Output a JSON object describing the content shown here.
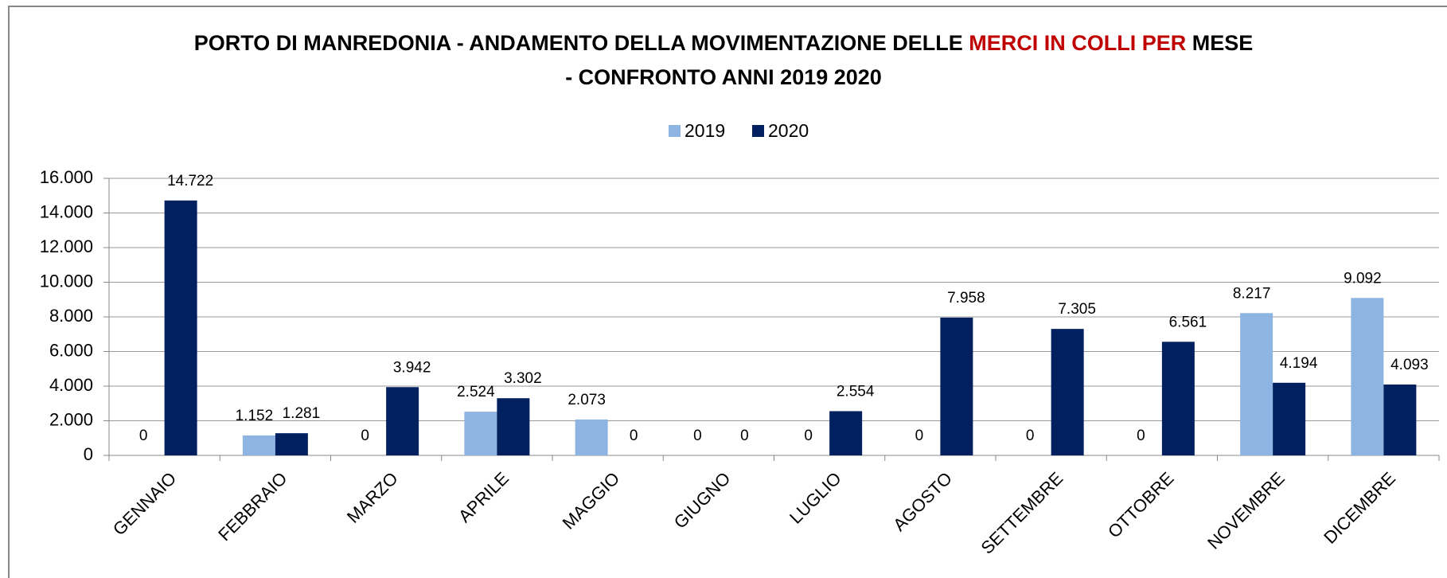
{
  "chart_data": {
    "type": "bar",
    "title_lines": [
      [
        {
          "text": "PORTO DI MANREDONIA - ANDAMENTO DELLA MOVIMENTAZIONE DELLE ",
          "color": "#000000"
        },
        {
          "text": "MERCI IN COLLI PER",
          "color": "#c00000"
        },
        {
          "text": " MESE",
          "color": "#000000"
        }
      ],
      [
        {
          "text": "- CONFRONTO ANNI 2019 2020",
          "color": "#000000"
        }
      ]
    ],
    "categories": [
      "GENNAIO",
      "FEBBRAIO",
      "MARZO",
      "APRILE",
      "MAGGIO",
      "GIUGNO",
      "LUGLIO",
      "AGOSTO",
      "SETTEMBRE",
      "OTTOBRE",
      "NOVEMBRE",
      "DICEMBRE"
    ],
    "series": [
      {
        "name": "2019",
        "color": "#8db4e2",
        "values": [
          0,
          1152,
          0,
          2524,
          2073,
          0,
          0,
          0,
          0,
          0,
          8217,
          9092
        ],
        "value_labels": [
          "0",
          "1.152",
          "0",
          "2.524",
          "2.073",
          "0",
          "0",
          "0",
          "0",
          "0",
          "8.217",
          "9.092"
        ]
      },
      {
        "name": "2020",
        "color": "#002060",
        "values": [
          14722,
          1281,
          3942,
          3302,
          0,
          0,
          2554,
          7958,
          7305,
          6561,
          4194,
          4093
        ],
        "value_labels": [
          "14.722",
          "1.281",
          "3.942",
          "3.302",
          "0",
          "0",
          "2.554",
          "7.958",
          "7.305",
          "6.561",
          "4.194",
          "4.093"
        ]
      }
    ],
    "ylim": [
      0,
      16000
    ],
    "yticks": [
      0,
      {
        "value": 2000,
        "label": "2.000"
      },
      {
        "value": 4000,
        "label": "4.000"
      },
      {
        "value": 6000,
        "label": "6.000"
      },
      {
        "value": 8000,
        "label": "8.000"
      },
      {
        "value": 10000,
        "label": "10.000"
      },
      {
        "value": 12000,
        "label": "12.000"
      },
      {
        "value": 14000,
        "label": "14.000"
      },
      {
        "value": 16000,
        "label": "16.000"
      }
    ],
    "grid": true,
    "legend": "top"
  }
}
